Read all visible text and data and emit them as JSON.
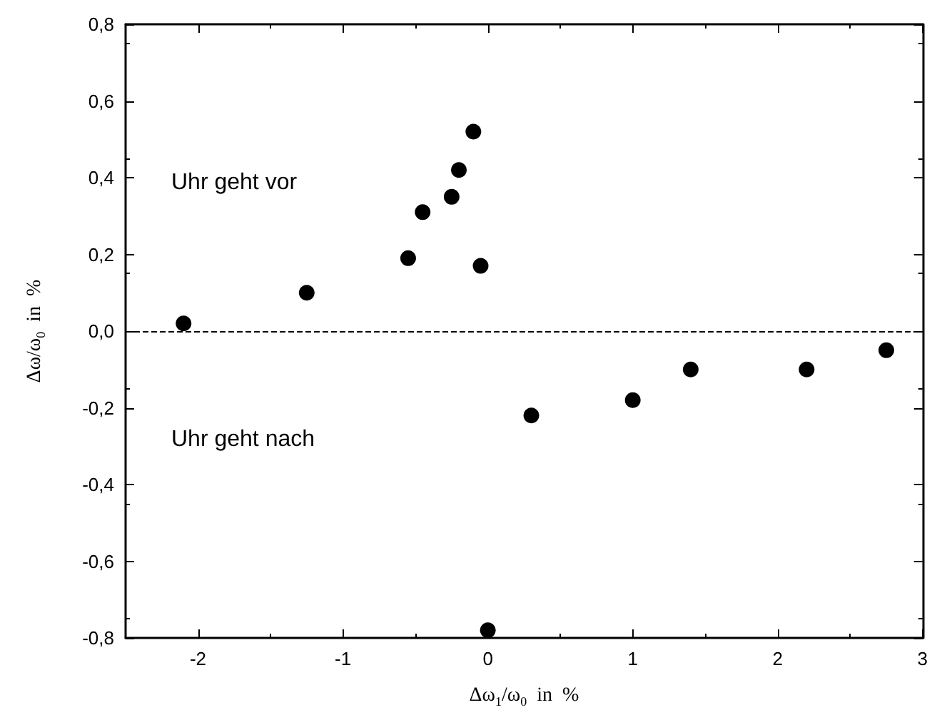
{
  "chart_data": {
    "type": "scatter",
    "xlabel": "Δω$_{1}$/ω$_{0}$  in  %",
    "ylabel": "Δω/ω$_{0}$  in  %",
    "x": [
      -2.1,
      -1.25,
      -0.55,
      -0.45,
      -0.25,
      -0.2,
      -0.1,
      -0.05,
      0,
      0.3,
      1,
      1.4,
      2.2,
      2.75
    ],
    "series": [
      {
        "color": "#000000",
        "values": [
          0.02,
          0.1,
          0.19,
          0.31,
          0.35,
          0.42,
          0.52,
          0.17,
          -0.78,
          -0.22,
          -0.18,
          -0.1,
          -0.1,
          -0.05
        ]
      }
    ],
    "xlim": [
      -2.5,
      3
    ],
    "xticks": [
      -2,
      -1,
      0,
      1,
      2,
      3
    ],
    "ylim": [
      -0.8,
      0.8
    ],
    "yticks": [
      {
        "value": -0.8,
        "label": "-0,8"
      },
      {
        "value": -0.6,
        "label": "-0,6"
      },
      {
        "value": -0.4,
        "label": "-0,4"
      },
      {
        "value": -0.2,
        "label": "-0,2"
      },
      {
        "value": 0,
        "label": "0,0"
      },
      {
        "value": 0.2,
        "label": "0,2"
      },
      {
        "value": 0.4,
        "label": "0,4"
      },
      {
        "value": 0.6,
        "label": "0,6"
      },
      {
        "value": 0.8,
        "label": "0,8"
      }
    ],
    "ref_lines": [
      {
        "axis": "y",
        "value": 0,
        "color": "#000000",
        "line_style": "dashed"
      }
    ],
    "annotations": [
      "Uhr geht vor",
      "Uhr geht nach"
    ],
    "marker": "circle"
  }
}
